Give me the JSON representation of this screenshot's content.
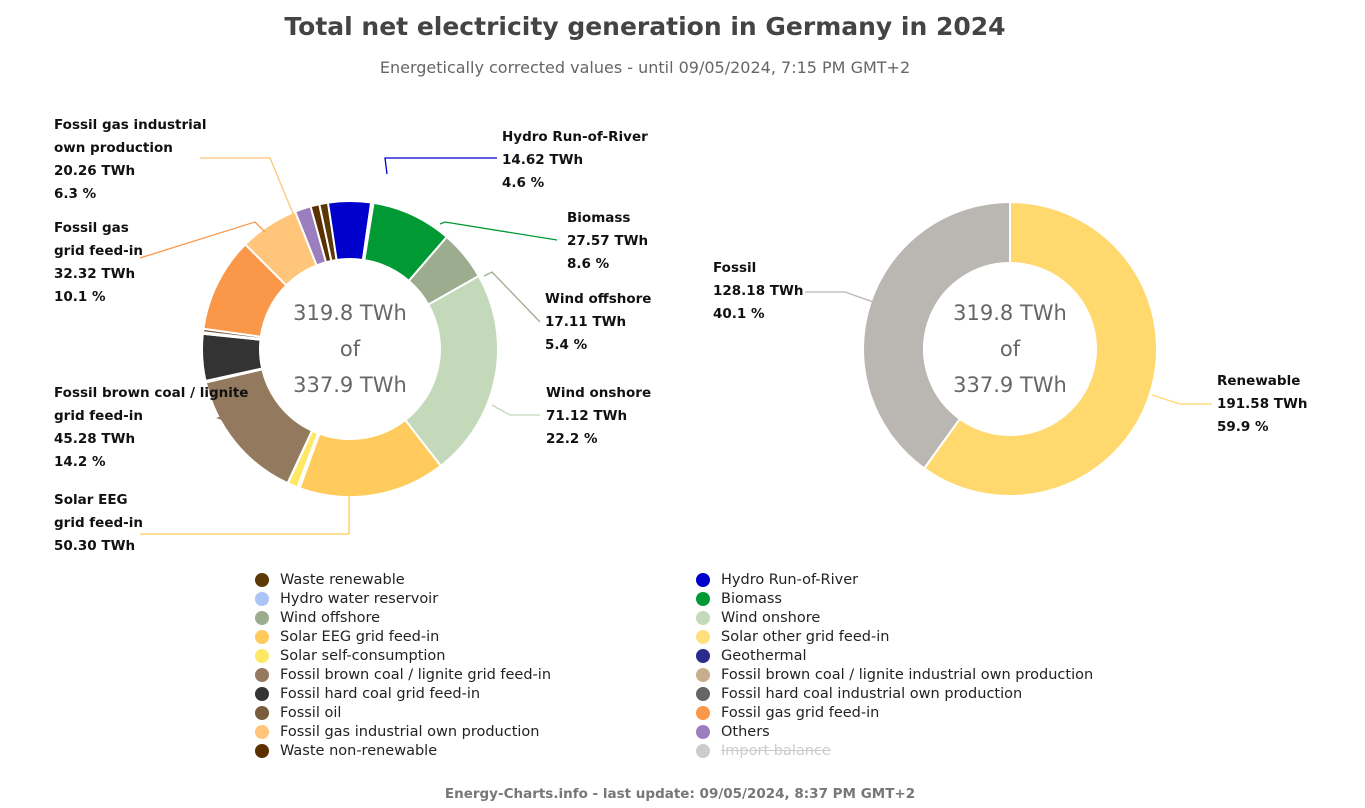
{
  "title": "Total net electricity generation in Germany in 2024",
  "subtitle": "Energetically corrected values - until 09/05/2024, 7:15 PM GMT+2",
  "footer": "Energy-Charts.info - last update: 09/05/2024, 8:37 PM GMT+2",
  "chart_data": [
    {
      "type": "pie",
      "variant": "donut",
      "center": {
        "line1": "319.8 TWh",
        "line2": "of",
        "line3": "337.9 TWh"
      },
      "unit": "TWh",
      "series": [
        {
          "name": "Waste renewable",
          "value": 3.0,
          "color": "#5c3a08"
        },
        {
          "name": "Hydro Run-of-River",
          "value": 14.62,
          "color": "#0000cc",
          "label": [
            "Hydro Run-of-River",
            "14.62 TWh",
            "4.6 %"
          ]
        },
        {
          "name": "Hydro water reservoir",
          "value": 0.8,
          "color": "#aac4f5"
        },
        {
          "name": "Biomass",
          "value": 27.57,
          "color": "#009933",
          "label": [
            "Biomass",
            "27.57 TWh",
            "8.6 %"
          ]
        },
        {
          "name": "Wind offshore",
          "value": 17.11,
          "color": "#9cad8f",
          "label": [
            "Wind offshore",
            "17.11 TWh",
            "5.4 %"
          ]
        },
        {
          "name": "Wind onshore",
          "value": 71.12,
          "color": "#c3d9b9",
          "label": [
            "Wind onshore",
            "71.12 TWh",
            "22.2 %"
          ]
        },
        {
          "name": "Solar EEG grid feed-in",
          "value": 50.3,
          "color": "#ffcb5c",
          "label": [
            "Solar EEG",
            "grid feed-in",
            "50.30 TWh"
          ]
        },
        {
          "name": "Solar other grid feed-in",
          "value": 0.8,
          "color": "#ffe07d"
        },
        {
          "name": "Solar self-consumption",
          "value": 3.5,
          "color": "#ffe866"
        },
        {
          "name": "Geothermal",
          "value": 0.1,
          "color": "#2b2b8c"
        },
        {
          "name": "Fossil brown coal / lignite grid feed-in",
          "value": 45.28,
          "color": "#937a5f",
          "label": [
            "Fossil brown coal / lignite",
            "grid feed-in",
            "45.28 TWh",
            "14.2 %"
          ]
        },
        {
          "name": "Fossil brown coal / lignite industrial own production",
          "value": 0.5,
          "color": "#c8ad8f"
        },
        {
          "name": "Fossil hard coal grid feed-in",
          "value": 16.0,
          "color": "#333333"
        },
        {
          "name": "Fossil hard coal industrial own production",
          "value": 0.5,
          "color": "#666666"
        },
        {
          "name": "Fossil oil",
          "value": 1.2,
          "color": "#7a5c3e"
        },
        {
          "name": "Fossil gas grid feed-in",
          "value": 32.32,
          "color": "#fb9748",
          "label": [
            "Fossil gas",
            "grid feed-in",
            "32.32 TWh",
            "10.1 %"
          ]
        },
        {
          "name": "Fossil gas industrial own production",
          "value": 20.26,
          "color": "#ffc57a",
          "label": [
            "Fossil gas industrial",
            "own production",
            "20.26 TWh",
            "6.3 %"
          ]
        },
        {
          "name": "Others",
          "value": 5.5,
          "color": "#9a7ebd"
        },
        {
          "name": "Waste non-renewable",
          "value": 3.0,
          "color": "#5a3000"
        },
        {
          "name": "Import balance",
          "value": 0,
          "color": "#cccccc",
          "hidden": true
        }
      ]
    },
    {
      "type": "pie",
      "variant": "donut",
      "center": {
        "line1": "319.8 TWh",
        "line2": "of",
        "line3": "337.9 TWh"
      },
      "unit": "TWh",
      "series": [
        {
          "name": "Renewable",
          "value": 191.58,
          "color": "#ffd86e",
          "label": [
            "Renewable",
            "191.58 TWh",
            "59.9 %"
          ]
        },
        {
          "name": "Fossil",
          "value": 128.18,
          "color": "#bab6b2",
          "label": [
            "Fossil",
            "128.18 TWh",
            "40.1 %"
          ]
        }
      ]
    }
  ]
}
